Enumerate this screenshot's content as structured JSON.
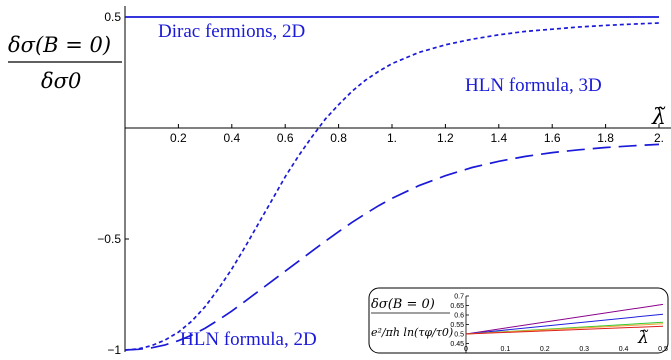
{
  "chart_data": [
    {
      "type": "line",
      "ylabel_num": "δσ(B = 0)",
      "ylabel_den": "δσ0",
      "xlabel": "λ̃",
      "xlim": [
        0,
        2.0
      ],
      "ylim": [
        -1,
        0.5
      ],
      "xticks": [
        "0.2",
        "0.4",
        "0.6",
        "0.8",
        "1.",
        "1.2",
        "1.4",
        "1.6",
        "1.8",
        "2."
      ],
      "yticks": [
        {
          "value": 0.5,
          "label": "0.5"
        },
        {
          "value": -0.5,
          "label": "−0.5"
        },
        {
          "value": -1,
          "label": "−1"
        }
      ],
      "grid": false,
      "series": [
        {
          "name": "Dirac fermions, 2D",
          "style": "solid",
          "color": "#1a1ad8",
          "x": [
            0,
            0.5,
            1.0,
            1.5,
            2.0
          ],
          "y": [
            0.5,
            0.5,
            0.5,
            0.5,
            0.5
          ]
        },
        {
          "name": "HLN formula, 3D",
          "style": "short-dash",
          "color": "#1a1ad8",
          "x": [
            0,
            0.05,
            0.1,
            0.15,
            0.2,
            0.25,
            0.3,
            0.35,
            0.4,
            0.45,
            0.5,
            0.55,
            0.6,
            0.65,
            0.7,
            0.75,
            0.8,
            0.85,
            0.9,
            0.95,
            1.0,
            1.1,
            1.2,
            1.3,
            1.4,
            1.5,
            1.6,
            1.7,
            1.8,
            1.9,
            2.0
          ],
          "y": [
            -1.0,
            -0.995,
            -0.98,
            -0.955,
            -0.92,
            -0.87,
            -0.805,
            -0.725,
            -0.635,
            -0.535,
            -0.43,
            -0.325,
            -0.22,
            -0.125,
            -0.04,
            0.04,
            0.105,
            0.165,
            0.215,
            0.255,
            0.29,
            0.34,
            0.375,
            0.4,
            0.42,
            0.435,
            0.445,
            0.455,
            0.462,
            0.468,
            0.473
          ]
        },
        {
          "name": "HLN formula, 2D",
          "style": "long-dash",
          "color": "#1a1ad8",
          "x": [
            0,
            0.05,
            0.1,
            0.15,
            0.2,
            0.25,
            0.3,
            0.35,
            0.4,
            0.45,
            0.5,
            0.55,
            0.6,
            0.65,
            0.7,
            0.75,
            0.8,
            0.85,
            0.9,
            0.95,
            1.0,
            1.1,
            1.2,
            1.3,
            1.4,
            1.5,
            1.6,
            1.7,
            1.8,
            1.9,
            2.0
          ],
          "y": [
            -1.0,
            -0.997,
            -0.99,
            -0.977,
            -0.958,
            -0.933,
            -0.902,
            -0.865,
            -0.825,
            -0.78,
            -0.735,
            -0.69,
            -0.645,
            -0.6,
            -0.555,
            -0.51,
            -0.467,
            -0.425,
            -0.387,
            -0.35,
            -0.317,
            -0.26,
            -0.215,
            -0.178,
            -0.15,
            -0.128,
            -0.111,
            -0.098,
            -0.088,
            -0.08,
            -0.074
          ]
        }
      ]
    },
    {
      "type": "line",
      "ylabel_num": "δσ(B = 0)",
      "ylabel_den": "e²/πh ln(τφ/τ0)",
      "xlabel": "λ̃",
      "xlim": [
        0,
        0.5
      ],
      "ylim": [
        0.4,
        0.7
      ],
      "xticks": [
        "0",
        "0.1",
        "0.2",
        "0.3",
        "0.4",
        "0.5"
      ],
      "yticks": [
        {
          "value": 0.45,
          "label": "0.45"
        },
        {
          "value": 0.5,
          "label": "0.5"
        },
        {
          "value": 0.55,
          "label": "0.55"
        },
        {
          "value": 0.6,
          "label": "0.6"
        },
        {
          "value": 0.65,
          "label": "0.65"
        },
        {
          "value": 0.7,
          "label": "0.7"
        }
      ],
      "series": [
        {
          "color": "#8b008b",
          "x": [
            0,
            0.5
          ],
          "y": [
            0.5,
            0.656
          ]
        },
        {
          "color": "#1f1fdd",
          "x": [
            0,
            0.5
          ],
          "y": [
            0.5,
            0.604
          ]
        },
        {
          "color": "#33cc33",
          "x": [
            0,
            0.5
          ],
          "y": [
            0.5,
            0.562
          ]
        },
        {
          "color": "#f2a23a",
          "x": [
            0,
            0.5
          ],
          "y": [
            0.5,
            0.554
          ]
        },
        {
          "color": "#dd1f1f",
          "x": [
            0,
            0.5
          ],
          "y": [
            0.5,
            0.541
          ]
        }
      ]
    }
  ]
}
